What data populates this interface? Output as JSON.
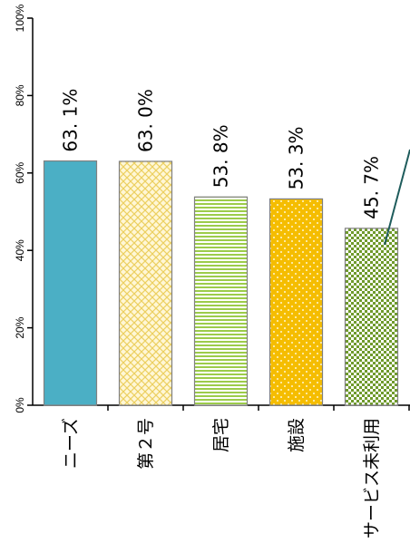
{
  "chart_data": {
    "type": "bar",
    "orientation": "rotated",
    "categories": [
      "ニーズ",
      "第２号",
      "居宅",
      "施設",
      "サービス未利用"
    ],
    "values": [
      63.1,
      63.0,
      53.8,
      53.3,
      45.7
    ],
    "value_labels": [
      "63. 1%",
      "63. 0%",
      "53. 8%",
      "53. 3%",
      "45. 7%"
    ],
    "ylim": [
      0,
      100
    ],
    "yticks": [
      0,
      20,
      40,
      60,
      80,
      100
    ],
    "ytick_labels": [
      "0%",
      "20%",
      "40%",
      "60%",
      "80%",
      "100%"
    ],
    "grid": false,
    "colors": [
      "#4bafc5",
      "#f3dc7a",
      "#9ccc4a",
      "#f5bd00",
      "#6f9a2c"
    ],
    "patterns": [
      "solid",
      "crosshatch",
      "horizontal-lines",
      "dots",
      "checker"
    ]
  }
}
